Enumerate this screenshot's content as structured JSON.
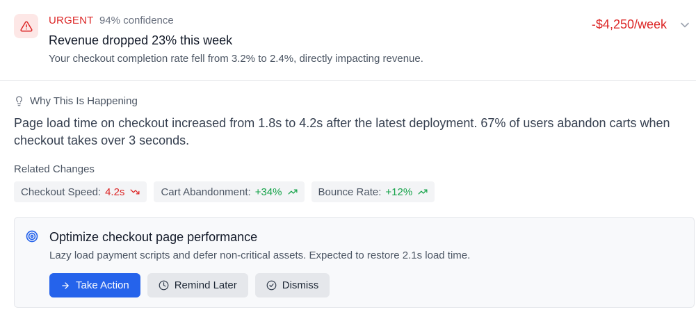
{
  "alert": {
    "icon": "warning-triangle-icon",
    "severity": "URGENT",
    "confidence": "94% confidence",
    "title": "Revenue dropped 23% this week",
    "description": "Your checkout completion rate fell from 3.2% to 2.4%, directly impacting revenue.",
    "impact": "-$4,250/week",
    "colors": {
      "danger": "#dc2626",
      "success": "#16a34a",
      "primary": "#2563eb"
    }
  },
  "why": {
    "heading": "Why This Is Happening",
    "body": "Page load time on checkout increased from 1.8s to 4.2s after the latest deployment. 67% of users abandon carts when checkout takes over 3 seconds."
  },
  "related": {
    "heading": "Related Changes",
    "items": [
      {
        "label": "Checkout Speed:",
        "value": "4.2s",
        "trend": "down",
        "icon": "trending-down-icon"
      },
      {
        "label": "Cart Abandonment:",
        "value": "+34%",
        "trend": "up",
        "icon": "trending-up-icon"
      },
      {
        "label": "Bounce Rate:",
        "value": "+12%",
        "trend": "up",
        "icon": "trending-up-icon"
      }
    ]
  },
  "recommendation": {
    "icon": "target-icon",
    "title": "Optimize checkout page performance",
    "description": "Lazy load payment scripts and defer non-critical assets. Expected to restore 2.1s load time.",
    "actions": {
      "take_action": "Take Action",
      "remind_later": "Remind Later",
      "dismiss": "Dismiss"
    }
  }
}
